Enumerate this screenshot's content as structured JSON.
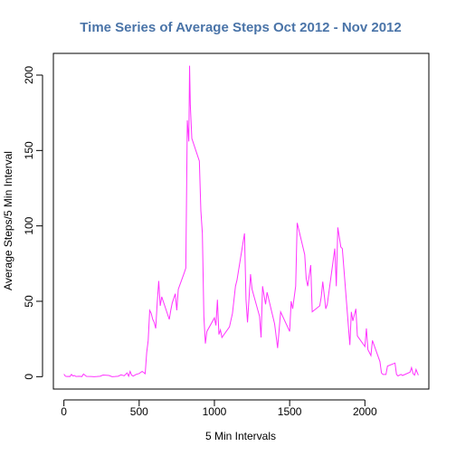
{
  "chart_data": {
    "type": "line",
    "title": "Time Series of Average Steps Oct 2012 - Nov 2012",
    "xlabel": "5 Min Intervals",
    "ylabel": "Average Steps/5 Min Interval",
    "xlim": [
      -70,
      2425
    ],
    "ylim": [
      -8.2,
      214.4
    ],
    "x_ticks": [
      0,
      500,
      1000,
      1500,
      2000
    ],
    "y_ticks": [
      0,
      50,
      100,
      150,
      200
    ],
    "grid": false,
    "legend": "none",
    "colors": {
      "line": "#ff33ff",
      "title": "#4a74a8",
      "axis": "#000000"
    },
    "series": [
      {
        "x": [
          0,
          10,
          20,
          30,
          40,
          50,
          60,
          70,
          80,
          100,
          120,
          130,
          150,
          180,
          200,
          220,
          240,
          260,
          300,
          320,
          340,
          360,
          380,
          400,
          420,
          430,
          440,
          450,
          460,
          480,
          500,
          520,
          540,
          550,
          560,
          570,
          580,
          590,
          600,
          610,
          620,
          630,
          640,
          650,
          700,
          710,
          720,
          740,
          750,
          760,
          800,
          810,
          820,
          830,
          835,
          840,
          850,
          900,
          910,
          920,
          930,
          940,
          950,
          1000,
          1010,
          1020,
          1030,
          1040,
          1050,
          1100,
          1120,
          1140,
          1150,
          1200,
          1210,
          1220,
          1240,
          1250,
          1300,
          1310,
          1320,
          1340,
          1350,
          1400,
          1420,
          1440,
          1500,
          1510,
          1520,
          1540,
          1550,
          1600,
          1610,
          1620,
          1640,
          1650,
          1700,
          1710,
          1720,
          1740,
          1750,
          1800,
          1810,
          1820,
          1840,
          1850,
          1900,
          1910,
          1920,
          1940,
          1950,
          2000,
          2010,
          2020,
          2040,
          2050,
          2100,
          2110,
          2120,
          2140,
          2150,
          2200,
          2210,
          2220,
          2240,
          2250,
          2300,
          2310,
          2320,
          2330,
          2340,
          2355
        ],
        "y": [
          1.7,
          0.3,
          0.1,
          0.2,
          0.1,
          1.5,
          0.5,
          0.8,
          0.1,
          0.3,
          0.1,
          1.8,
          0.2,
          0.1,
          0.0,
          0.1,
          0.3,
          1.1,
          0.8,
          0.0,
          0.1,
          0.3,
          1.2,
          0.6,
          2.5,
          0.3,
          3.5,
          1.0,
          0.4,
          1.5,
          2.1,
          3.5,
          2.0,
          16.0,
          24.0,
          44.0,
          42.0,
          38.0,
          36.0,
          32.0,
          49.0,
          63.5,
          47.0,
          53.0,
          38.0,
          44.0,
          49.0,
          55.0,
          44.0,
          58.0,
          69.0,
          72.0,
          170.0,
          156.0,
          206.2,
          180.0,
          158.0,
          143.0,
          110.0,
          95.0,
          40.0,
          22.0,
          30.0,
          39.0,
          34.0,
          51.0,
          28.0,
          31.0,
          26.0,
          33.0,
          42.0,
          60.0,
          64.0,
          95.0,
          51.0,
          36.0,
          68.0,
          58.0,
          40.0,
          26.0,
          60.0,
          48.0,
          56.0,
          35.0,
          19.0,
          43.0,
          30.0,
          50.0,
          45.0,
          60.0,
          102.0,
          81.0,
          65.0,
          60.0,
          74.0,
          43.0,
          47.0,
          53.0,
          63.0,
          45.0,
          48.0,
          85.0,
          60.0,
          99.0,
          86.0,
          85.0,
          21.0,
          43.0,
          37.0,
          45.0,
          27.0,
          20.0,
          32.0,
          18.0,
          14.0,
          24.0,
          10.0,
          2.5,
          1.5,
          1.5,
          7.0,
          9.0,
          1.5,
          0.5,
          1.5,
          0.8,
          3.0,
          6.0,
          2.0,
          1.0,
          4.8,
          1.0
        ]
      }
    ]
  }
}
